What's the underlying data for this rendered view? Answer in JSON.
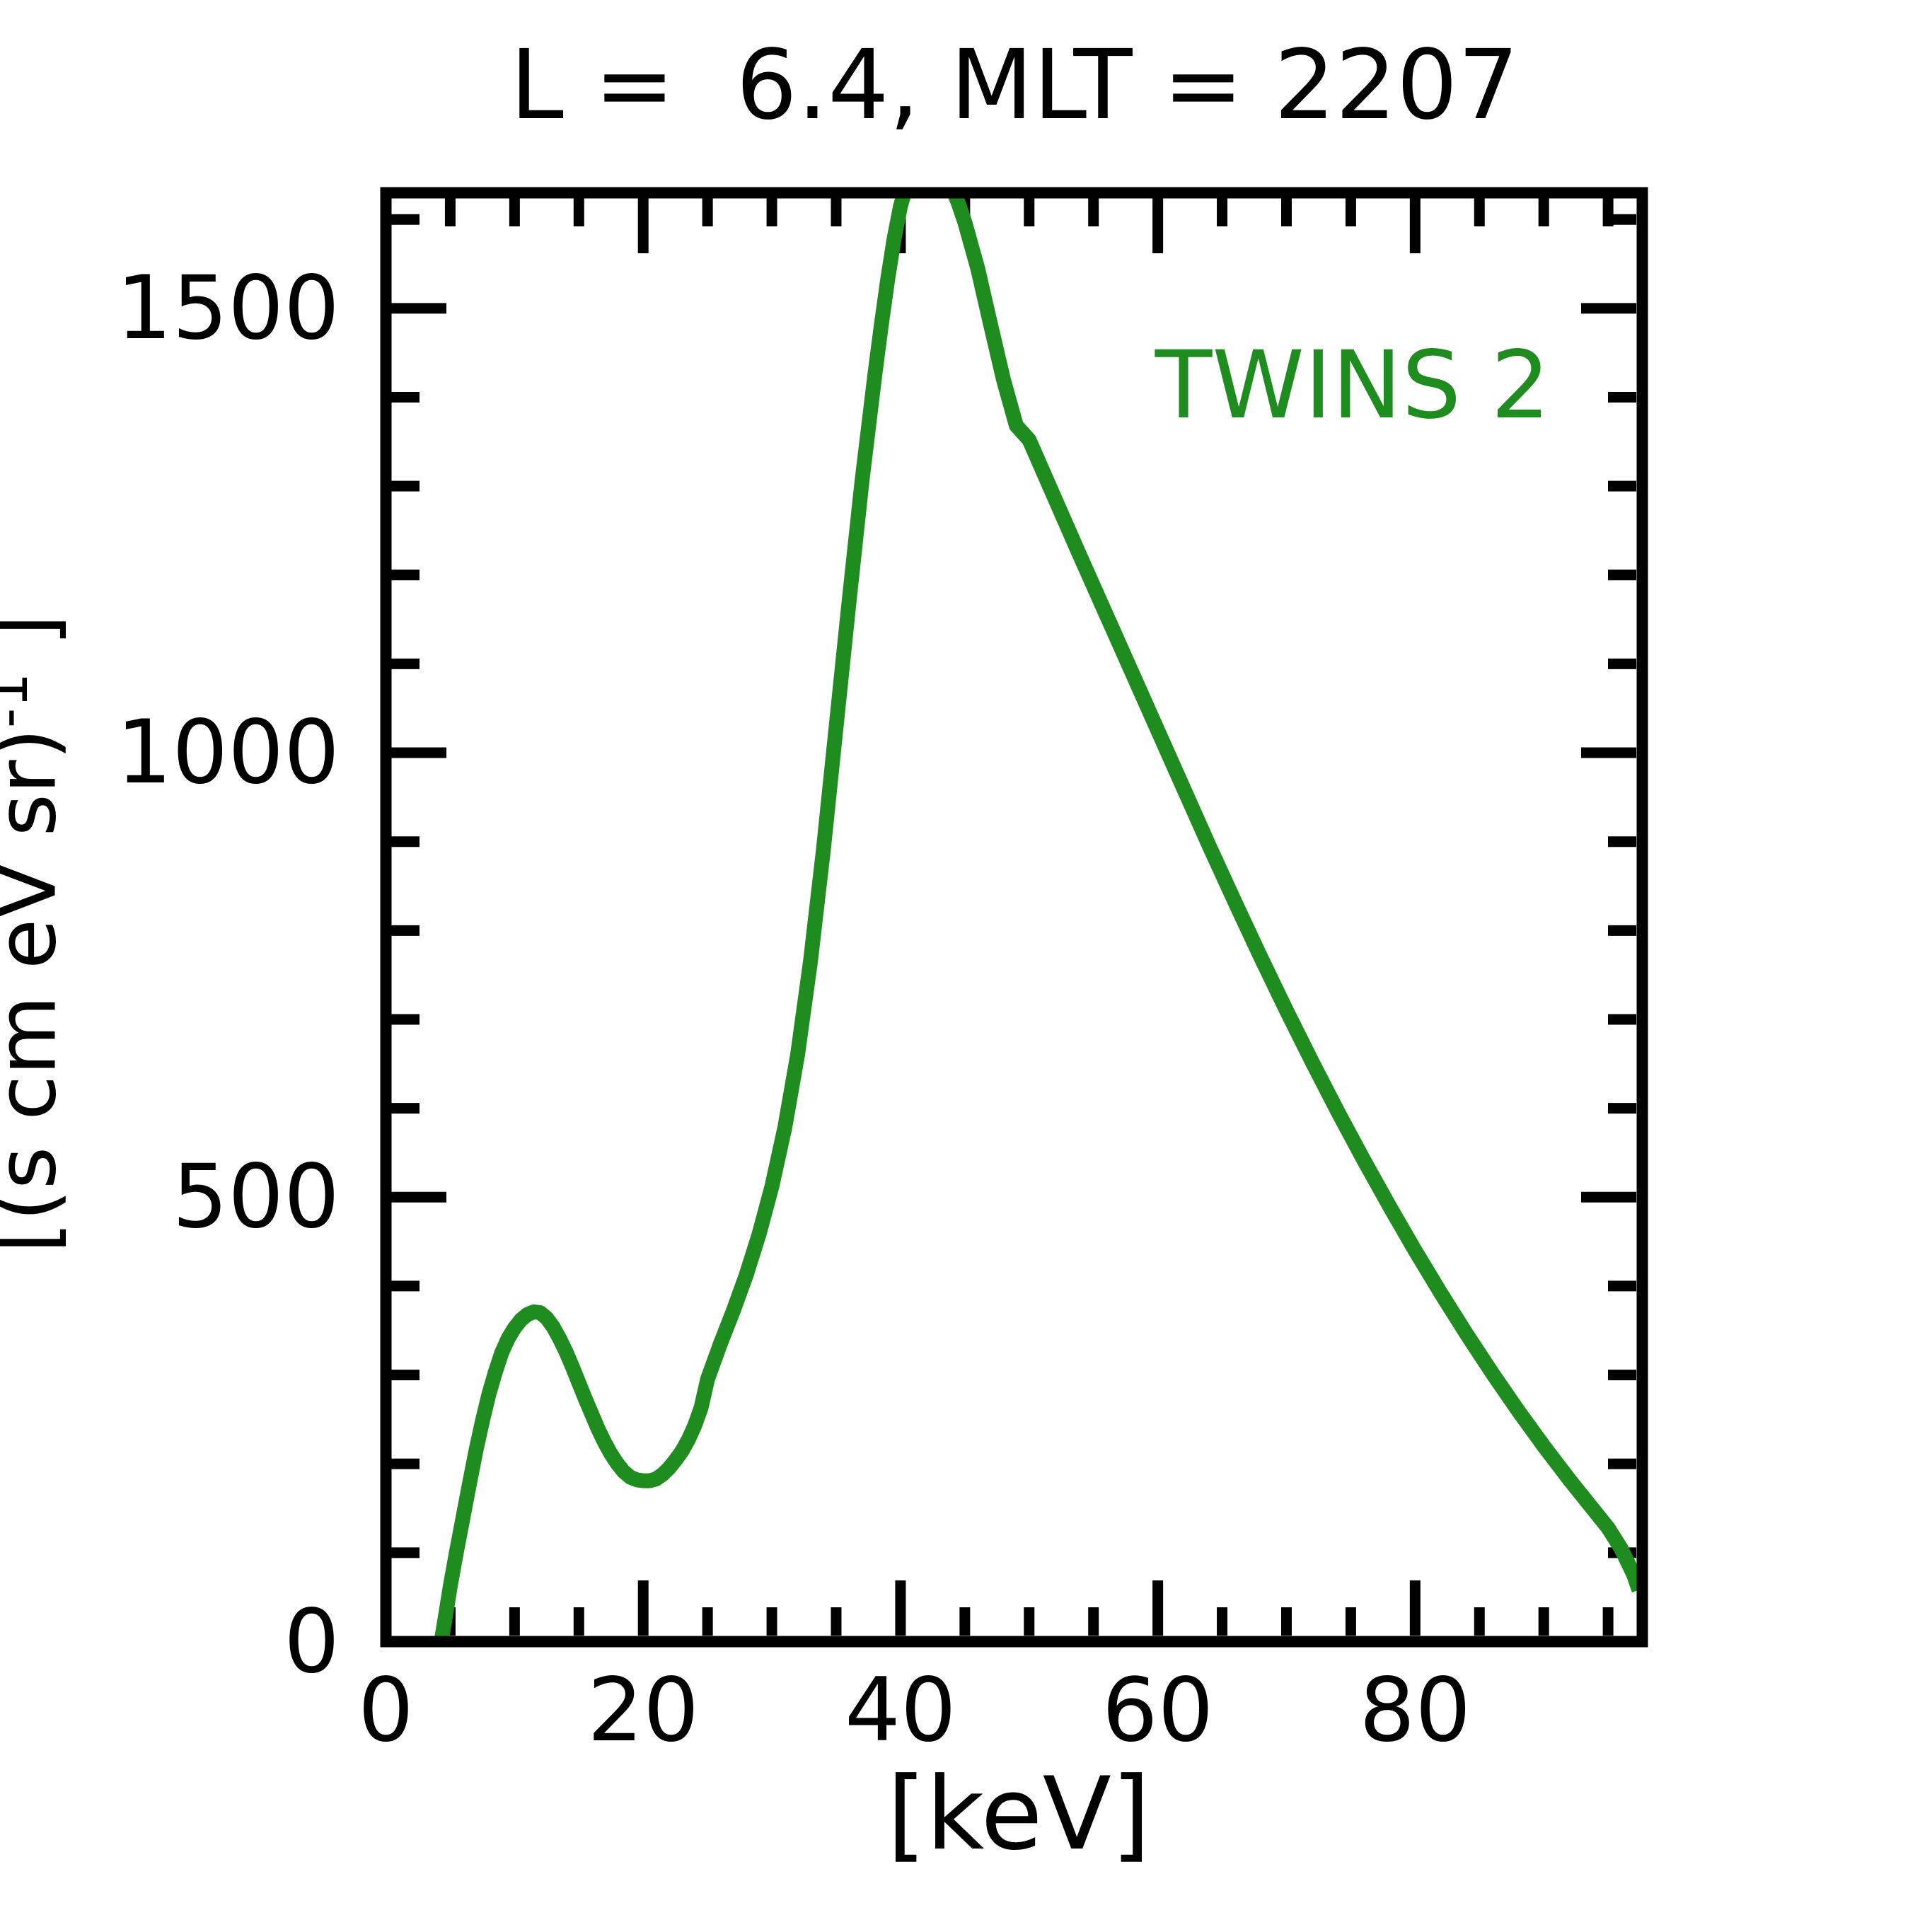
{
  "title": "L =  6.4, MLT = 2207",
  "legend": {
    "label": "TWINS 2",
    "color": "#1f8c1f"
  },
  "axes": {
    "xlabel": "[keV]",
    "ylabel_prefix": "[(s cm eV sr)",
    "ylabel_sup": "-1",
    "ylabel_suffix": " ]"
  },
  "chart_data": {
    "type": "line",
    "title": "L =  6.4, MLT = 2207",
    "xlabel": "[keV]",
    "ylabel": "[(s cm eV sr)^-1]",
    "xlim": [
      0,
      97.66
    ],
    "ylim": [
      0,
      1630
    ],
    "grid": false,
    "legend_position": "upper right inside",
    "frame_color": "#000000",
    "xticks": {
      "major": [
        0,
        20,
        40,
        60,
        80
      ],
      "labels": [
        "0",
        "20",
        "40",
        "60",
        "80"
      ],
      "minor_step": 5
    },
    "yticks": {
      "major": [
        0,
        500,
        1000,
        1500
      ],
      "labels": [
        "0",
        "500",
        "1000",
        "1500"
      ],
      "minor_step": 100
    },
    "series": [
      {
        "name": "TWINS 2",
        "color": "#1f8c1f",
        "points": [
          [
            4.3,
            0
          ],
          [
            4.7,
            35
          ],
          [
            5,
            62
          ],
          [
            5.5,
            102
          ],
          [
            6,
            140
          ],
          [
            6.5,
            178
          ],
          [
            7,
            215
          ],
          [
            7.5,
            248
          ],
          [
            8,
            278
          ],
          [
            8.5,
            303
          ],
          [
            9,
            325
          ],
          [
            9.5,
            341
          ],
          [
            10,
            353
          ],
          [
            10.5,
            362
          ],
          [
            11,
            368
          ],
          [
            11.5,
            371
          ],
          [
            12,
            370
          ],
          [
            12.5,
            364
          ],
          [
            13,
            354
          ],
          [
            13.5,
            341
          ],
          [
            14,
            326
          ],
          [
            14.5,
            309
          ],
          [
            15,
            291
          ],
          [
            15.5,
            273
          ],
          [
            16,
            256
          ],
          [
            16.5,
            239
          ],
          [
            17,
            224
          ],
          [
            17.5,
            211
          ],
          [
            18,
            200
          ],
          [
            18.5,
            191
          ],
          [
            19,
            185
          ],
          [
            19.5,
            182
          ],
          [
            20,
            181
          ],
          [
            20.5,
            181
          ],
          [
            21,
            183
          ],
          [
            21.5,
            188
          ],
          [
            22,
            195
          ],
          [
            22.5,
            204
          ],
          [
            23,
            214
          ],
          [
            23.5,
            227
          ],
          [
            24,
            243
          ],
          [
            24.5,
            263
          ],
          [
            25,
            295
          ],
          [
            26,
            335
          ],
          [
            27,
            372
          ],
          [
            28,
            412
          ],
          [
            29,
            458
          ],
          [
            30,
            512
          ],
          [
            31,
            578
          ],
          [
            32,
            660
          ],
          [
            33,
            765
          ],
          [
            34,
            890
          ],
          [
            35,
            1030
          ],
          [
            36,
            1170
          ],
          [
            37,
            1305
          ],
          [
            38,
            1425
          ],
          [
            38.5,
            1480
          ],
          [
            39,
            1532
          ],
          [
            39.5,
            1578
          ],
          [
            40,
            1615
          ],
          [
            40.5,
            1640
          ],
          [
            41,
            1655
          ],
          [
            41.5,
            1663
          ],
          [
            42,
            1666
          ],
          [
            42.5,
            1665
          ],
          [
            43,
            1660
          ],
          [
            43.5,
            1650
          ],
          [
            44,
            1636
          ],
          [
            44.5,
            1618
          ],
          [
            45,
            1597
          ],
          [
            46,
            1545
          ],
          [
            47,
            1482
          ],
          [
            48,
            1420
          ],
          [
            49,
            1368
          ],
          [
            50,
            1352
          ],
          [
            52,
            1286
          ],
          [
            54,
            1220
          ],
          [
            56,
            1155
          ],
          [
            58,
            1090
          ],
          [
            60,
            1025
          ],
          [
            62,
            960
          ],
          [
            64,
            895
          ],
          [
            66,
            832
          ],
          [
            68,
            770
          ],
          [
            70,
            710
          ],
          [
            72,
            652
          ],
          [
            74,
            596
          ],
          [
            76,
            542
          ],
          [
            78,
            490
          ],
          [
            80,
            440
          ],
          [
            82,
            392
          ],
          [
            84,
            346
          ],
          [
            86,
            302
          ],
          [
            88,
            260
          ],
          [
            90,
            220
          ],
          [
            92,
            182
          ],
          [
            94,
            146
          ],
          [
            95,
            128
          ],
          [
            96,
            105
          ],
          [
            97,
            75
          ],
          [
            97.4,
            58
          ]
        ]
      }
    ]
  }
}
